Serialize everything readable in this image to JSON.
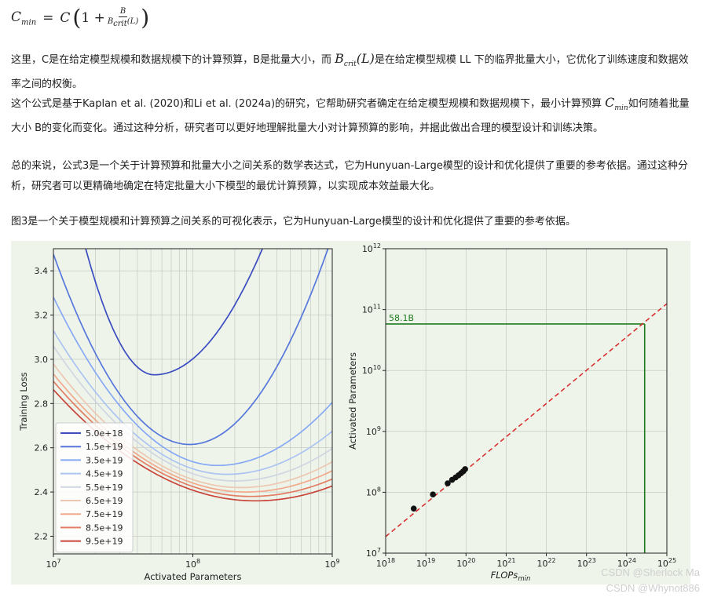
{
  "formula": {
    "lhs_var": "C",
    "lhs_sub": "min",
    "equals": "=",
    "c": "C",
    "one_plus": "1 +",
    "num": "B",
    "den_var": "B",
    "den_sub": "crit",
    "den_arg": "(L)"
  },
  "paragraphs": {
    "p1_a": "这里，C是在给定模型规模和数据规模下的计算预算，B是批量大小，而",
    "p1_sym_var": "B",
    "p1_sym_sub": "crit",
    "p1_sym_arg": "(L)",
    "p1_b": "是在给定模型规模 LL 下的临界批量大小，它优化了训练速度和数据效率之间的权衡。",
    "p2_a": "这个公式是基于Kaplan et al. (2020)和Li et al. (2024a)的研究，它帮助研究者确定在给定模型规模和数据规模下，最小计算预算",
    "p2_sym_var": "C",
    "p2_sym_sub": "min",
    "p2_b": "如何随着批量大小 B的变化而变化。通过这种分析，研究者可以更好地理解批量大小对计算预算的影响，并据此做出合理的模型设计和训练决策。",
    "p3": "总的来说，公式3是一个关于计算预算和批量大小之间关系的数学表达式，它为Hunyuan-Large模型的设计和优化提供了重要的参考依据。通过这种分析，研究者可以更精确地确定在特定批量大小下模型的最优计算预算，以实现成本效益最大化。",
    "p4": "图3是一个关于模型规模和计算预算之间关系的可视化表示，它为Hunyuan-Large模型的设计和优化提供了重要的参考依据。"
  },
  "watermarks": {
    "w1": "CSDN @Sherlock  Ma",
    "w2": "CSDN @Whynot886"
  },
  "chart_data": [
    {
      "type": "line",
      "xlabel": "Activated Parameters",
      "ylabel": "Training Loss",
      "x_scale": "log",
      "xlim": [
        10000000.0,
        1000000000.0
      ],
      "ylim": [
        2.12,
        3.5
      ],
      "xticks": [
        {
          "value": 10000000.0,
          "base": "10",
          "exp": "7"
        },
        {
          "value": 100000000.0,
          "base": "10",
          "exp": "8"
        },
        {
          "value": 1000000000.0,
          "base": "10",
          "exp": "9"
        }
      ],
      "yticks": [
        {
          "value": 2.2,
          "label": "2.2"
        },
        {
          "value": 2.4,
          "label": "2.4"
        },
        {
          "value": 2.6,
          "label": "2.6"
        },
        {
          "value": 2.8,
          "label": "2.8"
        },
        {
          "value": 3.0,
          "label": "3.0"
        },
        {
          "value": 3.2,
          "label": "3.2"
        },
        {
          "value": 3.4,
          "label": "3.4"
        }
      ],
      "grid": true,
      "legend_position": "lower-left",
      "series": [
        {
          "name": "5.0e+18",
          "color": "#3a4cc0",
          "opt_x": 53000000.0,
          "opt_loss": 2.93,
          "k_left": 2.35,
          "k_right": 0.95
        },
        {
          "name": "1.5e+19",
          "color": "#5677db",
          "opt_x": 95000000.0,
          "opt_loss": 2.615,
          "k_left": 0.9,
          "k_right": 0.9
        },
        {
          "name": "3.5e+19",
          "color": "#86a8f5",
          "opt_x": 150000000.0,
          "opt_loss": 2.52,
          "k_left": 0.55,
          "k_right": 0.42
        },
        {
          "name": "4.5e+19",
          "color": "#abc3f2",
          "opt_x": 175000000.0,
          "opt_loss": 2.48,
          "k_left": 0.42,
          "k_right": 0.34
        },
        {
          "name": "5.5e+19",
          "color": "#cfd6e2",
          "opt_x": 200000000.0,
          "opt_loss": 2.45,
          "k_left": 0.36,
          "k_right": 0.3
        },
        {
          "name": "6.5e+19",
          "color": "#ecc8b2",
          "opt_x": 220000000.0,
          "opt_loss": 2.42,
          "k_left": 0.31,
          "k_right": 0.27
        },
        {
          "name": "7.5e+19",
          "color": "#f2a98c",
          "opt_x": 240000000.0,
          "opt_loss": 2.4,
          "k_left": 0.28,
          "k_right": 0.25
        },
        {
          "name": "8.5e+19",
          "color": "#e27c63",
          "opt_x": 260000000.0,
          "opt_loss": 2.38,
          "k_left": 0.26,
          "k_right": 0.23
        },
        {
          "name": "9.5e+19",
          "color": "#c9453a",
          "opt_x": 280000000.0,
          "opt_loss": 2.36,
          "k_left": 0.24,
          "k_right": 0.22
        }
      ]
    },
    {
      "type": "scatter",
      "xlabel": "FLOPs",
      "xlabel_sub": "min",
      "ylabel": "Activated Parameters",
      "x_scale": "log",
      "y_scale": "log",
      "xlim": [
        1e+18,
        1e+25
      ],
      "ylim": [
        10000000.0,
        1000000000000.0
      ],
      "xticks": [
        {
          "value": 1e+18,
          "base": "10",
          "exp": "18"
        },
        {
          "value": 1e+19,
          "base": "10",
          "exp": "19"
        },
        {
          "value": 1e+20,
          "base": "10",
          "exp": "20"
        },
        {
          "value": 1e+21,
          "base": "10",
          "exp": "21"
        },
        {
          "value": 1e+22,
          "base": "10",
          "exp": "22"
        },
        {
          "value": 1e+23,
          "base": "10",
          "exp": "23"
        },
        {
          "value": 1e+24,
          "base": "10",
          "exp": "24"
        },
        {
          "value": 1e+25,
          "base": "10",
          "exp": "25"
        }
      ],
      "yticks": [
        {
          "value": 10000000.0,
          "base": "10",
          "exp": "7"
        },
        {
          "value": 100000000.0,
          "base": "10",
          "exp": "8"
        },
        {
          "value": 1000000000.0,
          "base": "10",
          "exp": "9"
        },
        {
          "value": 10000000000.0,
          "base": "10",
          "exp": "10"
        },
        {
          "value": 100000000000.0,
          "base": "10",
          "exp": "11"
        },
        {
          "value": 1000000000000.0,
          "base": "10",
          "exp": "12"
        }
      ],
      "grid": true,
      "points": [
        {
          "x": 5e+18,
          "y": 54000000.0
        },
        {
          "x": 1.5e+19,
          "y": 92000000.0
        },
        {
          "x": 3.5e+19,
          "y": 140000000.0
        },
        {
          "x": 4.5e+19,
          "y": 160000000.0
        },
        {
          "x": 5.5e+19,
          "y": 175000000.0
        },
        {
          "x": 6.5e+19,
          "y": 190000000.0
        },
        {
          "x": 7.5e+19,
          "y": 205000000.0
        },
        {
          "x": 8.5e+19,
          "y": 220000000.0
        },
        {
          "x": 9.5e+19,
          "y": 240000000.0
        }
      ],
      "fit_line": {
        "from": [
          1e+18,
          18700000.0
        ],
        "to": [
          1e+25,
          125000000000.0
        ],
        "color": "#d62728",
        "style": "dashed"
      },
      "highlight": {
        "label": "58.1B",
        "x": 2.8e+24,
        "y": 58100000000.0,
        "color": "#1e7b1e"
      },
      "point_color": "#111111"
    }
  ]
}
